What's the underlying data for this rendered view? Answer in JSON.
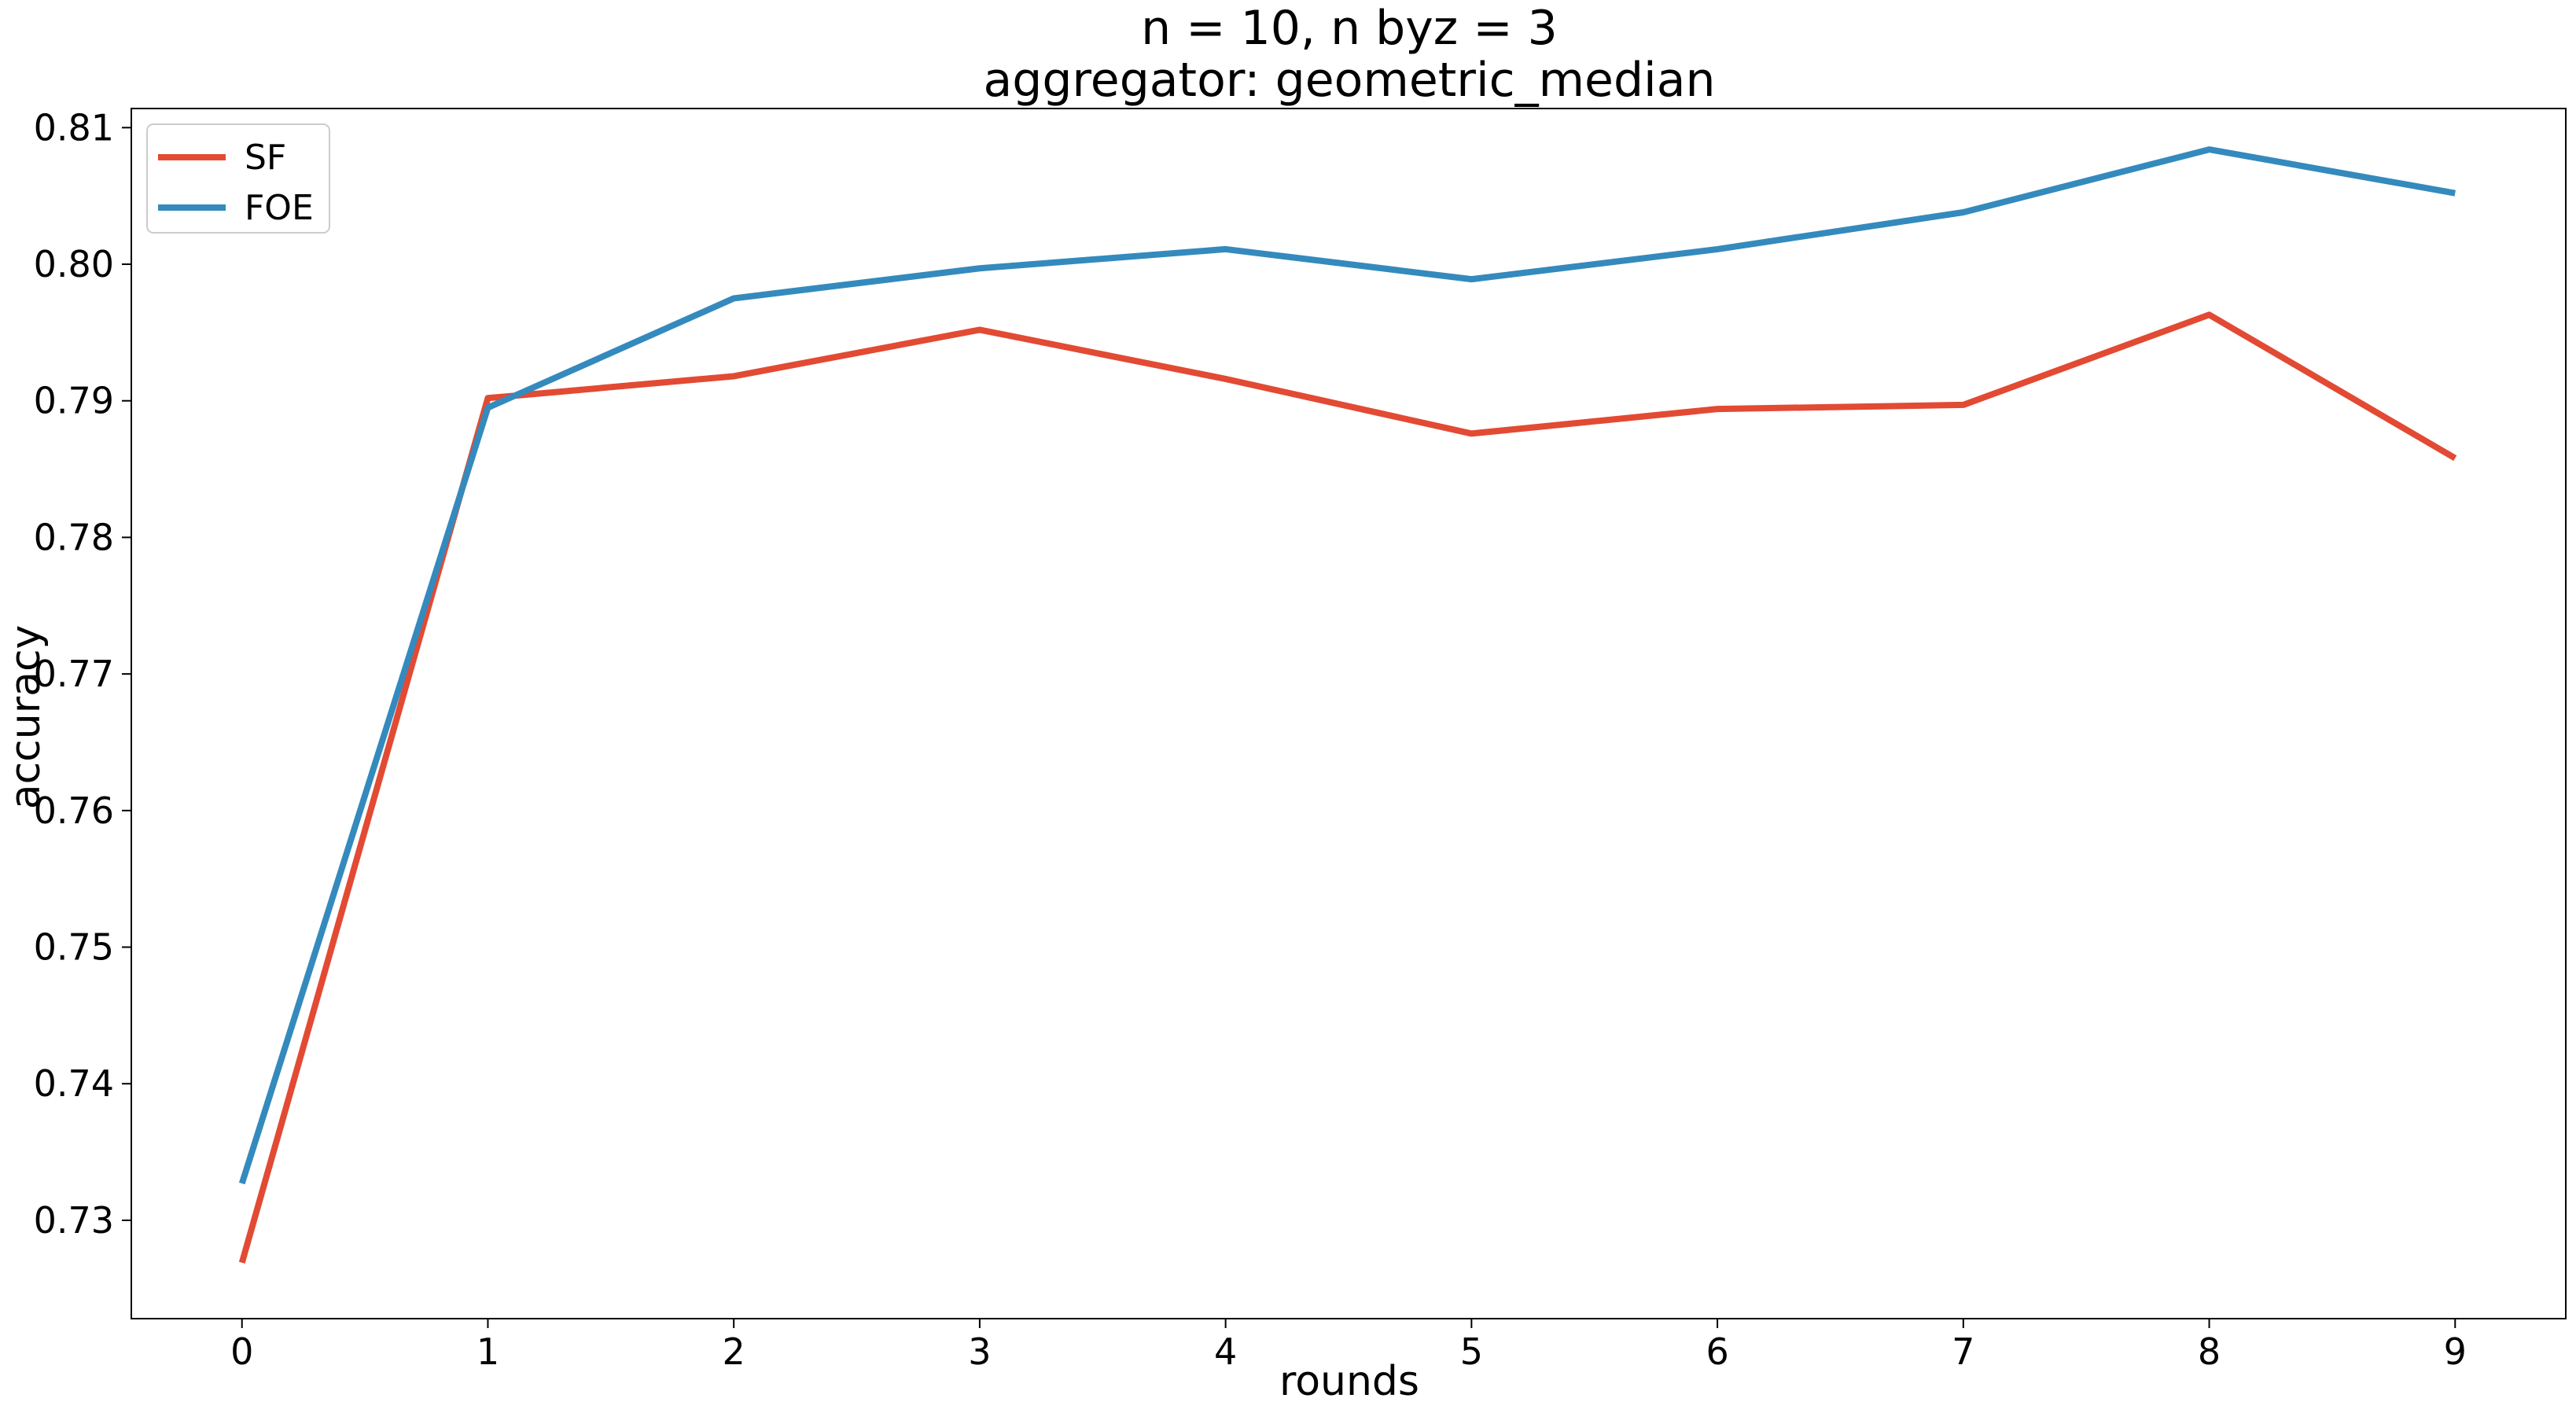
{
  "chart_data": {
    "type": "line",
    "title": "n = 10, n byz = 3",
    "subtitle": "aggregator: geometric_median",
    "xlabel": "rounds",
    "ylabel": "accuracy",
    "x": [
      0,
      1,
      2,
      3,
      4,
      5,
      6,
      7,
      8,
      9
    ],
    "xlim": [
      -0.45,
      9.45
    ],
    "ylim": [
      0.7228,
      0.8114
    ],
    "xticks": [
      0,
      1,
      2,
      3,
      4,
      5,
      6,
      7,
      8,
      9
    ],
    "yticks": [
      0.73,
      0.74,
      0.75,
      0.76,
      0.77,
      0.78,
      0.79,
      0.8,
      0.81
    ],
    "ytick_labels": [
      "0.73",
      "0.74",
      "0.75",
      "0.76",
      "0.77",
      "0.78",
      "0.79",
      "0.80",
      "0.81"
    ],
    "grid": false,
    "legend_position": "top-left",
    "series": [
      {
        "name": "SF",
        "color": "#e24a33",
        "values": [
          0.7269,
          0.7902,
          0.7918,
          0.7952,
          0.7916,
          0.7876,
          0.7894,
          0.7897,
          0.7963,
          0.7858
        ]
      },
      {
        "name": "FOE",
        "color": "#348abd",
        "values": [
          0.7327,
          0.7895,
          0.7975,
          0.7997,
          0.8011,
          0.7989,
          0.8011,
          0.8038,
          0.8084,
          0.8052
        ]
      }
    ]
  }
}
